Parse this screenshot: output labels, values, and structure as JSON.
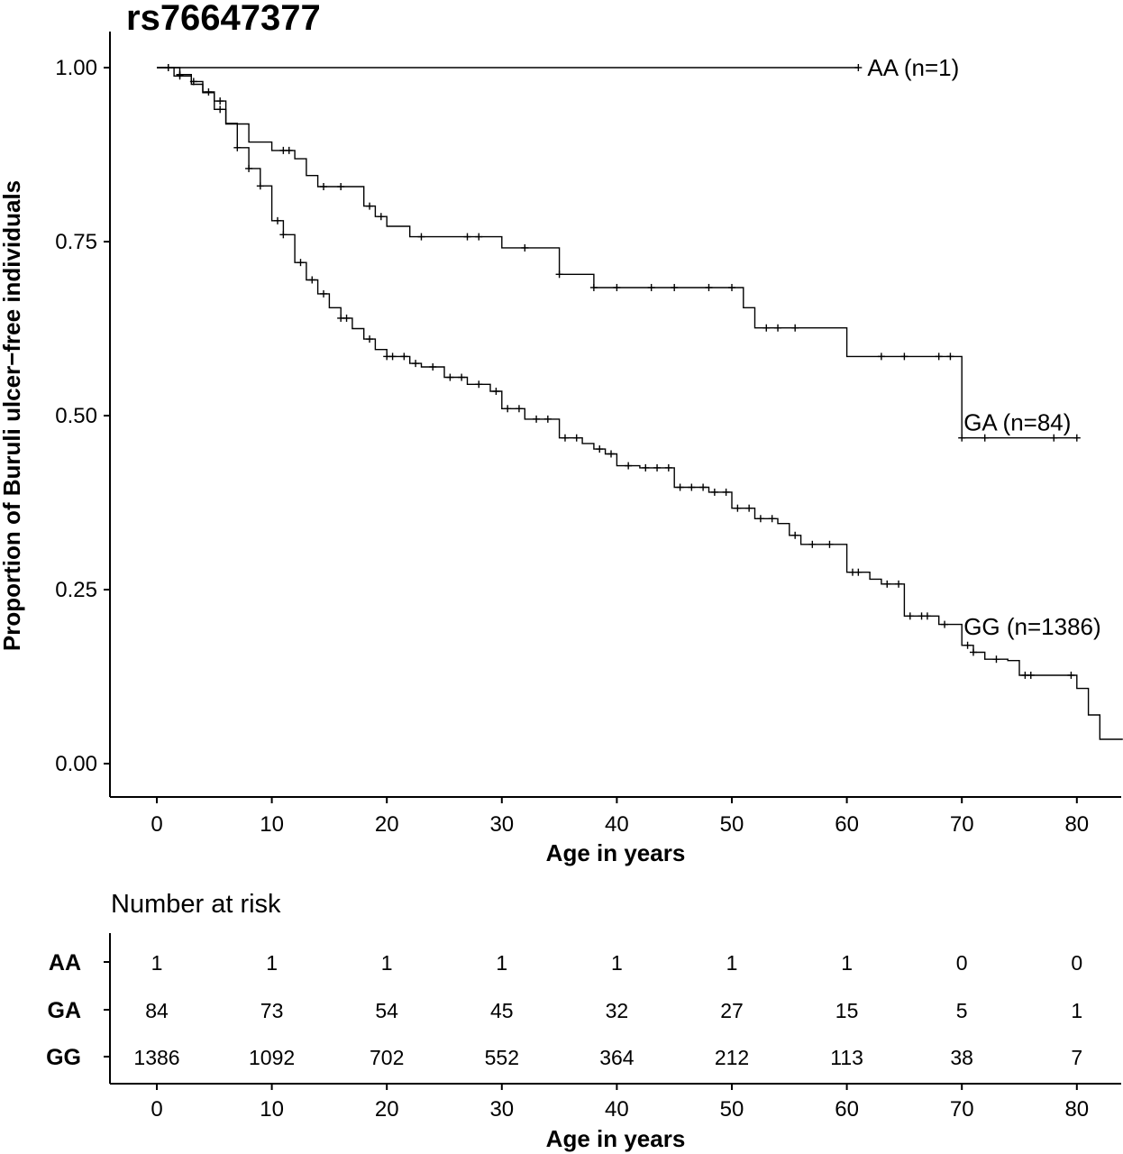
{
  "chart_data": {
    "type": "line",
    "subtype": "kaplan-meier",
    "title": "rs76647377",
    "xlabel": "Age in years",
    "ylabel": "Proportion of Buruli ulcer−free individuals",
    "xlim": [
      -4,
      84
    ],
    "ylim": [
      -0.05,
      1.05
    ],
    "xticks": [
      0,
      10,
      20,
      30,
      40,
      50,
      60,
      70,
      80
    ],
    "yticks": [
      0.0,
      0.25,
      0.5,
      0.75,
      1.0
    ],
    "ytick_labels": [
      "0.00",
      "0.25",
      "0.50",
      "0.75",
      "1.00"
    ],
    "grid": false,
    "series": [
      {
        "name": "AA",
        "label": "AA (n=1)",
        "steps": [
          [
            0,
            1.0
          ],
          [
            61,
            1.0
          ]
        ],
        "censor": [
          1,
          61
        ]
      },
      {
        "name": "GA",
        "label": "GA (n=84)",
        "steps": [
          [
            0,
            1.0
          ],
          [
            1.5,
            0.988
          ],
          [
            3,
            0.976
          ],
          [
            4,
            0.964
          ],
          [
            5,
            0.952
          ],
          [
            6,
            0.919
          ],
          [
            8,
            0.893
          ],
          [
            10,
            0.881
          ],
          [
            12,
            0.869
          ],
          [
            13,
            0.845
          ],
          [
            14,
            0.829
          ],
          [
            18,
            0.801
          ],
          [
            19,
            0.786
          ],
          [
            20,
            0.772
          ],
          [
            22,
            0.757
          ],
          [
            30,
            0.741
          ],
          [
            35,
            0.703
          ],
          [
            38,
            0.684
          ],
          [
            51,
            0.655
          ],
          [
            52,
            0.626
          ],
          [
            60,
            0.585
          ],
          [
            70,
            0.468
          ],
          [
            80,
            0.468
          ]
        ],
        "censor": [
          1,
          2,
          5.5,
          11,
          11.5,
          14.5,
          16,
          18.5,
          19.5,
          23,
          27,
          28,
          32,
          35,
          38,
          40,
          43,
          45,
          48,
          50,
          53,
          54,
          55.5,
          63,
          65,
          68,
          69,
          70,
          72,
          78,
          80
        ]
      },
      {
        "name": "GG",
        "label": "GG (n=1386)",
        "steps": [
          [
            0,
            1.0
          ],
          [
            2,
            0.99
          ],
          [
            3,
            0.98
          ],
          [
            4,
            0.965
          ],
          [
            5,
            0.94
          ],
          [
            6,
            0.92
          ],
          [
            7,
            0.885
          ],
          [
            8,
            0.855
          ],
          [
            9,
            0.83
          ],
          [
            10,
            0.78
          ],
          [
            11,
            0.76
          ],
          [
            12,
            0.72
          ],
          [
            13,
            0.695
          ],
          [
            14,
            0.675
          ],
          [
            15,
            0.655
          ],
          [
            16,
            0.64
          ],
          [
            17,
            0.625
          ],
          [
            18,
            0.61
          ],
          [
            19,
            0.595
          ],
          [
            20,
            0.585
          ],
          [
            22,
            0.575
          ],
          [
            23,
            0.57
          ],
          [
            25,
            0.555
          ],
          [
            27,
            0.545
          ],
          [
            29,
            0.535
          ],
          [
            30,
            0.51
          ],
          [
            32,
            0.495
          ],
          [
            35,
            0.468
          ],
          [
            37,
            0.46
          ],
          [
            38,
            0.452
          ],
          [
            39,
            0.445
          ],
          [
            40,
            0.428
          ],
          [
            42,
            0.425
          ],
          [
            45,
            0.397
          ],
          [
            48,
            0.39
          ],
          [
            50,
            0.367
          ],
          [
            52,
            0.352
          ],
          [
            54,
            0.345
          ],
          [
            55,
            0.328
          ],
          [
            56,
            0.315
          ],
          [
            60,
            0.275
          ],
          [
            62,
            0.265
          ],
          [
            63,
            0.258
          ],
          [
            65,
            0.212
          ],
          [
            68,
            0.2
          ],
          [
            70,
            0.17
          ],
          [
            71,
            0.16
          ],
          [
            72,
            0.15
          ],
          [
            74,
            0.148
          ],
          [
            75,
            0.127
          ],
          [
            80,
            0.108
          ],
          [
            81,
            0.07
          ],
          [
            82,
            0.035
          ],
          [
            84,
            0.035
          ]
        ],
        "censor": [
          1,
          2,
          3.2,
          4.5,
          5.5,
          7,
          8,
          9,
          10.5,
          11,
          12.5,
          13.5,
          14.5,
          16,
          16.5,
          18.5,
          20,
          20.5,
          21.5,
          22.5,
          24,
          25.5,
          26.5,
          28,
          29.5,
          30.5,
          31.5,
          33,
          34,
          35.5,
          36.5,
          38.5,
          39.5,
          41,
          42.5,
          43.5,
          44.5,
          45.5,
          46.5,
          47.5,
          48.5,
          49.5,
          50.5,
          51.5,
          52.5,
          53.5,
          55.5,
          57,
          58.5,
          60.5,
          61,
          63.5,
          64.5,
          65.5,
          66.5,
          67,
          68.5,
          70.5,
          71,
          73,
          75.5,
          76,
          79.5
        ]
      }
    ]
  },
  "risk_table": {
    "title": "Number at risk",
    "xlabel": "Age in years",
    "xticks": [
      0,
      10,
      20,
      30,
      40,
      50,
      60,
      70,
      80
    ],
    "rows": [
      {
        "name": "AA",
        "values": [
          "1",
          "1",
          "1",
          "1",
          "1",
          "1",
          "1",
          "0",
          "0"
        ]
      },
      {
        "name": "GA",
        "values": [
          "84",
          "73",
          "54",
          "45",
          "32",
          "27",
          "15",
          "5",
          "1"
        ]
      },
      {
        "name": "GG",
        "values": [
          "1386",
          "1092",
          "702",
          "552",
          "364",
          "212",
          "113",
          "38",
          "7"
        ]
      }
    ]
  }
}
